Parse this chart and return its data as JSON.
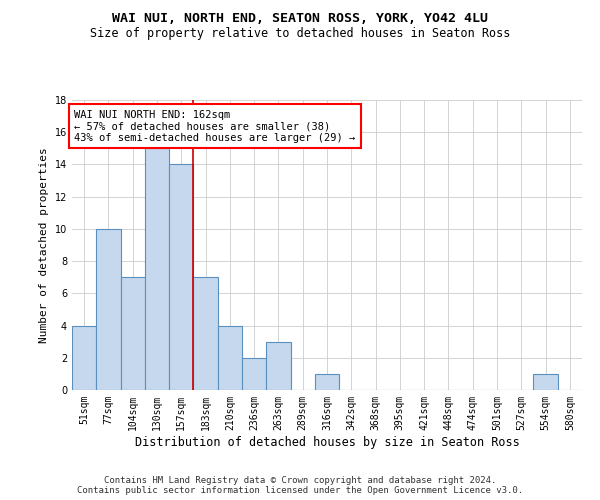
{
  "title": "WAI NUI, NORTH END, SEATON ROSS, YORK, YO42 4LU",
  "subtitle": "Size of property relative to detached houses in Seaton Ross",
  "xlabel": "Distribution of detached houses by size in Seaton Ross",
  "ylabel": "Number of detached properties",
  "categories": [
    "51sqm",
    "77sqm",
    "104sqm",
    "130sqm",
    "157sqm",
    "183sqm",
    "210sqm",
    "236sqm",
    "263sqm",
    "289sqm",
    "316sqm",
    "342sqm",
    "368sqm",
    "395sqm",
    "421sqm",
    "448sqm",
    "474sqm",
    "501sqm",
    "527sqm",
    "554sqm",
    "580sqm"
  ],
  "values": [
    4,
    10,
    7,
    15,
    14,
    7,
    4,
    2,
    3,
    0,
    1,
    0,
    0,
    0,
    0,
    0,
    0,
    0,
    0,
    1,
    0
  ],
  "bar_color": "#c5d8ed",
  "bar_edge_color": "#5a90bf",
  "bar_linewidth": 0.8,
  "property_line_x": 4.5,
  "property_line_color": "#cc0000",
  "ylim": [
    0,
    18
  ],
  "yticks": [
    0,
    2,
    4,
    6,
    8,
    10,
    12,
    14,
    16,
    18
  ],
  "annotation_box_text": "WAI NUI NORTH END: 162sqm\n← 57% of detached houses are smaller (38)\n43% of semi-detached houses are larger (29) →",
  "footer_line1": "Contains HM Land Registry data © Crown copyright and database right 2024.",
  "footer_line2": "Contains public sector information licensed under the Open Government Licence v3.0.",
  "background_color": "#ffffff",
  "grid_color": "#cccccc",
  "title_fontsize": 9.5,
  "subtitle_fontsize": 8.5,
  "xlabel_fontsize": 8.5,
  "ylabel_fontsize": 8,
  "tick_fontsize": 7,
  "annotation_fontsize": 7.5,
  "footer_fontsize": 6.5
}
